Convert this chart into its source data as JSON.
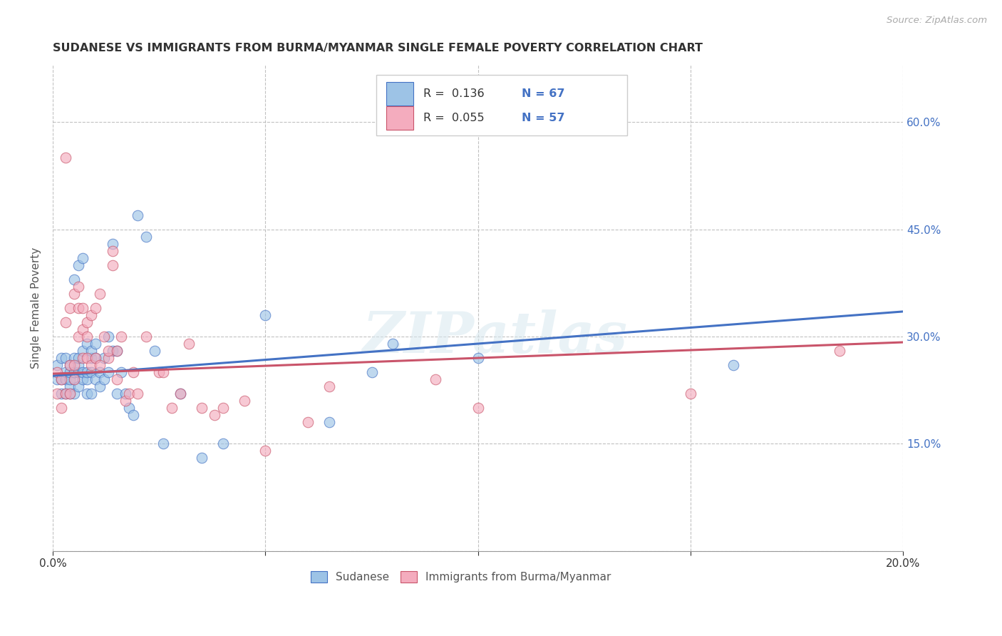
{
  "title": "SUDANESE VS IMMIGRANTS FROM BURMA/MYANMAR SINGLE FEMALE POVERTY CORRELATION CHART",
  "source": "Source: ZipAtlas.com",
  "ylabel": "Single Female Poverty",
  "xlim": [
    0.0,
    0.2
  ],
  "ylim": [
    0.0,
    0.68
  ],
  "sudanese_color": "#9dc3e6",
  "sudanese_edge": "#4472c4",
  "burma_color": "#f4acbe",
  "burma_edge": "#c9546a",
  "trend_blue": "#4472c4",
  "trend_pink": "#c9546a",
  "watermark": "ZIPatlas",
  "background_color": "#ffffff",
  "grid_color": "#bbbbbb",
  "legend_blue_r": "R =  0.136",
  "legend_blue_n": "N = 67",
  "legend_pink_r": "R =  0.055",
  "legend_pink_n": "N = 57",
  "sudanese_x": [
    0.001,
    0.001,
    0.002,
    0.002,
    0.002,
    0.003,
    0.003,
    0.003,
    0.003,
    0.004,
    0.004,
    0.004,
    0.004,
    0.004,
    0.005,
    0.005,
    0.005,
    0.005,
    0.005,
    0.005,
    0.006,
    0.006,
    0.006,
    0.006,
    0.006,
    0.007,
    0.007,
    0.007,
    0.007,
    0.008,
    0.008,
    0.008,
    0.008,
    0.009,
    0.009,
    0.009,
    0.009,
    0.01,
    0.01,
    0.01,
    0.011,
    0.011,
    0.012,
    0.012,
    0.013,
    0.013,
    0.014,
    0.014,
    0.015,
    0.015,
    0.016,
    0.017,
    0.018,
    0.019,
    0.02,
    0.022,
    0.024,
    0.026,
    0.03,
    0.035,
    0.04,
    0.05,
    0.065,
    0.075,
    0.08,
    0.1,
    0.16
  ],
  "sudanese_y": [
    0.24,
    0.26,
    0.22,
    0.24,
    0.27,
    0.22,
    0.24,
    0.25,
    0.27,
    0.22,
    0.23,
    0.24,
    0.25,
    0.26,
    0.22,
    0.24,
    0.25,
    0.25,
    0.27,
    0.38,
    0.23,
    0.25,
    0.26,
    0.27,
    0.4,
    0.24,
    0.25,
    0.28,
    0.41,
    0.22,
    0.24,
    0.25,
    0.29,
    0.22,
    0.25,
    0.27,
    0.28,
    0.24,
    0.27,
    0.29,
    0.23,
    0.25,
    0.24,
    0.27,
    0.25,
    0.3,
    0.28,
    0.43,
    0.22,
    0.28,
    0.25,
    0.22,
    0.2,
    0.19,
    0.47,
    0.44,
    0.28,
    0.15,
    0.22,
    0.13,
    0.15,
    0.33,
    0.18,
    0.25,
    0.29,
    0.27,
    0.26
  ],
  "burma_x": [
    0.001,
    0.001,
    0.002,
    0.002,
    0.003,
    0.003,
    0.003,
    0.004,
    0.004,
    0.004,
    0.005,
    0.005,
    0.005,
    0.006,
    0.006,
    0.006,
    0.007,
    0.007,
    0.007,
    0.008,
    0.008,
    0.008,
    0.009,
    0.009,
    0.01,
    0.01,
    0.011,
    0.011,
    0.012,
    0.013,
    0.013,
    0.014,
    0.014,
    0.015,
    0.015,
    0.016,
    0.017,
    0.018,
    0.019,
    0.02,
    0.022,
    0.025,
    0.026,
    0.028,
    0.03,
    0.032,
    0.035,
    0.038,
    0.04,
    0.045,
    0.05,
    0.06,
    0.065,
    0.09,
    0.1,
    0.15,
    0.185
  ],
  "burma_y": [
    0.22,
    0.25,
    0.2,
    0.24,
    0.32,
    0.55,
    0.22,
    0.22,
    0.26,
    0.34,
    0.24,
    0.26,
    0.36,
    0.3,
    0.34,
    0.37,
    0.27,
    0.31,
    0.34,
    0.27,
    0.3,
    0.32,
    0.26,
    0.33,
    0.27,
    0.34,
    0.26,
    0.36,
    0.3,
    0.27,
    0.28,
    0.4,
    0.42,
    0.24,
    0.28,
    0.3,
    0.21,
    0.22,
    0.25,
    0.22,
    0.3,
    0.25,
    0.25,
    0.2,
    0.22,
    0.29,
    0.2,
    0.19,
    0.2,
    0.21,
    0.14,
    0.18,
    0.23,
    0.24,
    0.2,
    0.22,
    0.28
  ],
  "trend_blue_x0": 0.0,
  "trend_blue_y0": 0.245,
  "trend_blue_x1": 0.2,
  "trend_blue_y1": 0.335,
  "trend_pink_x0": 0.0,
  "trend_pink_y0": 0.248,
  "trend_pink_x1": 0.2,
  "trend_pink_y1": 0.292,
  "marker_size": 110,
  "alpha": 0.65
}
